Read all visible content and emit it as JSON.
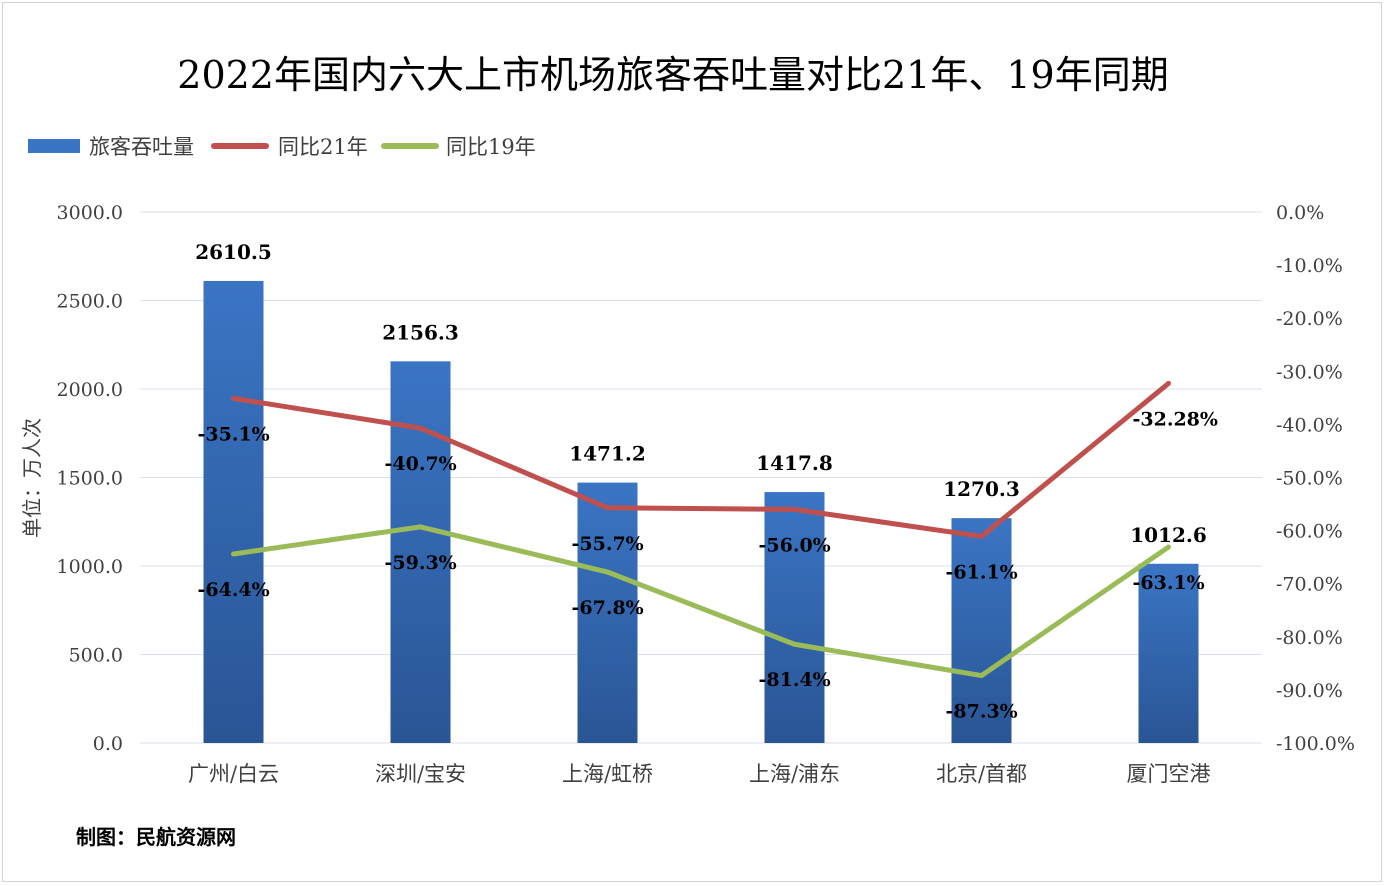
{
  "chart_data": {
    "type": "bar",
    "title": "2022年国内六大上市机场旅客吞吐量对比21年、19年同期",
    "categories": [
      "广州/白云",
      "深圳/宝安",
      "上海/虹桥",
      "上海/浦东",
      "北京/首都",
      "厦门空港"
    ],
    "ylabel": "单位：万人次",
    "ylim": [
      0,
      3000
    ],
    "yticks": [
      "0.0",
      "500.0",
      "1000.0",
      "1500.0",
      "2000.0",
      "2500.0",
      "3000.0"
    ],
    "y2lim": [
      -100,
      0
    ],
    "y2ticks": [
      "-100.0%",
      "-90.0%",
      "-80.0%",
      "-70.0%",
      "-60.0%",
      "-50.0%",
      "-40.0%",
      "-30.0%",
      "-20.0%",
      "-10.0%",
      "0.0%"
    ],
    "legend_position": "top-left",
    "grid": true,
    "series": [
      {
        "name": "旅客吞吐量",
        "type": "bar",
        "axis": "left",
        "color": "#3a75c4",
        "values": [
          2610.5,
          2156.3,
          1471.2,
          1417.8,
          1270.3,
          1012.6
        ],
        "labels": [
          "2610.5",
          "2156.3",
          "1471.2",
          "1417.8",
          "1270.3",
          "1012.6"
        ]
      },
      {
        "name": "同比21年",
        "type": "line",
        "axis": "right",
        "color": "#c0504d",
        "values": [
          -35.1,
          -40.7,
          -55.7,
          -56.0,
          -61.1,
          -32.28
        ],
        "labels": [
          "-35.1%",
          "-40.7%",
          "-55.7%",
          "-56.0%",
          "-61.1%",
          "-32.28%"
        ]
      },
      {
        "name": "同比19年",
        "type": "line",
        "axis": "right",
        "color": "#9bbb59",
        "values": [
          -64.4,
          -59.3,
          -67.8,
          -81.4,
          -87.3,
          -63.1
        ],
        "labels": [
          "-64.4%",
          "-59.3%",
          "-67.8%",
          "-81.4%",
          "-87.3%",
          "-63.1%"
        ]
      }
    ]
  },
  "source_note": "制图：民航资源网"
}
